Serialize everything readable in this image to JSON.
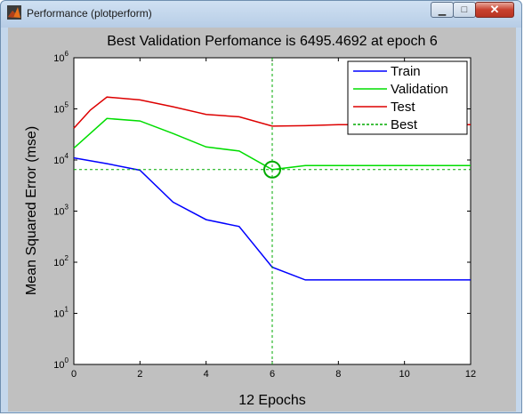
{
  "window": {
    "title": "Performance (plotperform)",
    "controls": {
      "minimize": "▁",
      "maximize": "□",
      "close": "✕"
    }
  },
  "chart_data": {
    "type": "line",
    "title": "Best Validation Perfomance is 6495.4692 at epoch 6",
    "xlabel": "12 Epochs",
    "ylabel": "Mean Squared Error  (mse)",
    "xlim": [
      0,
      12
    ],
    "ylim": [
      1,
      1000000
    ],
    "yscale": "log",
    "x_ticks": [
      "0",
      "2",
      "4",
      "6",
      "8",
      "10",
      "12"
    ],
    "y_ticks": [
      {
        "base": "10",
        "exp": "0"
      },
      {
        "base": "10",
        "exp": "1"
      },
      {
        "base": "10",
        "exp": "2"
      },
      {
        "base": "10",
        "exp": "3"
      },
      {
        "base": "10",
        "exp": "4"
      },
      {
        "base": "10",
        "exp": "5"
      },
      {
        "base": "10",
        "exp": "6"
      }
    ],
    "legend_position": "top-right",
    "series": [
      {
        "name": "Train",
        "color": "#0000ff",
        "x": [
          0,
          1,
          2,
          3,
          4,
          5,
          6,
          7,
          8,
          9,
          10,
          11,
          12
        ],
        "values": [
          11000,
          8500,
          6300,
          1500,
          680,
          500,
          80,
          45,
          45,
          45,
          45,
          45,
          45
        ]
      },
      {
        "name": "Validation",
        "color": "#00dd00",
        "x": [
          0,
          1,
          2,
          3,
          4,
          5,
          6,
          7,
          8,
          9,
          10,
          11,
          12
        ],
        "values": [
          17000,
          65000,
          58000,
          33000,
          18000,
          15000,
          6495.4692,
          7800,
          7800,
          7800,
          7800,
          7800,
          7800
        ]
      },
      {
        "name": "Test",
        "color": "#dd0000",
        "x": [
          0,
          0.5,
          1,
          2,
          3,
          4,
          5,
          6,
          7,
          8,
          9,
          10,
          11,
          12
        ],
        "values": [
          42000,
          95000,
          170000,
          150000,
          110000,
          78000,
          70000,
          46000,
          47000,
          49000,
          49000,
          49000,
          49000,
          49000
        ]
      }
    ],
    "best": {
      "name": "Best",
      "color": "#00aa00",
      "epoch": 6,
      "value": 6495.4692
    }
  }
}
